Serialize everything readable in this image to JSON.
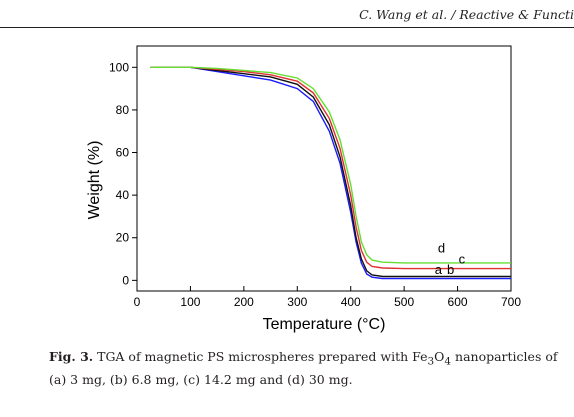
{
  "running_header": "C. Wang et al. / Reactive & Functi",
  "caption": {
    "label": "Fig. 3.",
    "text_before_formula": "TGA of magnetic PS microspheres prepared with Fe",
    "formula_sub_3": "3",
    "formula_O": "O",
    "formula_sub_4": "4",
    "text_after_formula": " nanoparticles of (a) 3 mg, (b) 6.8 mg, (c) 14.2 mg and (d) 30 mg."
  },
  "colors": {
    "a": "#1a1aff",
    "b": "#111111",
    "c": "#e03030",
    "d": "#66dd33"
  },
  "chart_data": {
    "type": "line",
    "xlabel": "Temperature (°C)",
    "ylabel": "Weight (%)",
    "xlim": [
      0,
      700
    ],
    "ylim": [
      -5,
      110
    ],
    "xticks": [
      0,
      100,
      200,
      300,
      400,
      500,
      600,
      700
    ],
    "yticks": [
      0,
      20,
      40,
      60,
      80,
      100
    ],
    "grid": false,
    "legend": "curve labels near tails",
    "series": [
      {
        "name": "a",
        "color": "#1a1aff",
        "x": [
          25,
          100,
          150,
          200,
          250,
          300,
          330,
          360,
          380,
          400,
          410,
          420,
          430,
          440,
          460,
          500,
          600,
          700
        ],
        "y": [
          100,
          100,
          98,
          96,
          94,
          90,
          84,
          70,
          55,
          32,
          18,
          8,
          3,
          1.5,
          0.8,
          0.8,
          0.8,
          0.8
        ]
      },
      {
        "name": "b",
        "color": "#111111",
        "x": [
          25,
          100,
          150,
          200,
          250,
          300,
          330,
          360,
          380,
          400,
          410,
          420,
          430,
          440,
          460,
          500,
          600,
          700
        ],
        "y": [
          100,
          100,
          98.5,
          97,
          95.5,
          92,
          86,
          73,
          58,
          35,
          20,
          10,
          4.5,
          2.5,
          1.8,
          1.8,
          1.8,
          1.8
        ]
      },
      {
        "name": "c",
        "color": "#e03030",
        "x": [
          25,
          100,
          150,
          200,
          250,
          300,
          330,
          360,
          380,
          400,
          410,
          420,
          430,
          440,
          460,
          500,
          600,
          700
        ],
        "y": [
          100,
          100,
          99,
          98,
          96.5,
          93.5,
          88,
          76,
          62,
          40,
          25,
          14,
          8.5,
          6.5,
          5.8,
          5.5,
          5.5,
          5.5
        ]
      },
      {
        "name": "d",
        "color": "#66dd33",
        "x": [
          25,
          100,
          150,
          200,
          250,
          300,
          330,
          360,
          380,
          400,
          410,
          420,
          430,
          440,
          460,
          500,
          600,
          700
        ],
        "y": [
          100,
          100,
          99.5,
          98.5,
          97.5,
          95,
          90,
          79,
          66,
          45,
          30,
          18,
          12,
          9.5,
          8.5,
          8.2,
          8.2,
          8.2
        ]
      }
    ],
    "annotations": [
      {
        "text": "d",
        "x": 570,
        "y": 13
      },
      {
        "text": "c",
        "x": 608,
        "y": 8
      },
      {
        "text": "a",
        "x": 564,
        "y": 3
      },
      {
        "text": "b",
        "x": 587,
        "y": 3
      }
    ]
  }
}
